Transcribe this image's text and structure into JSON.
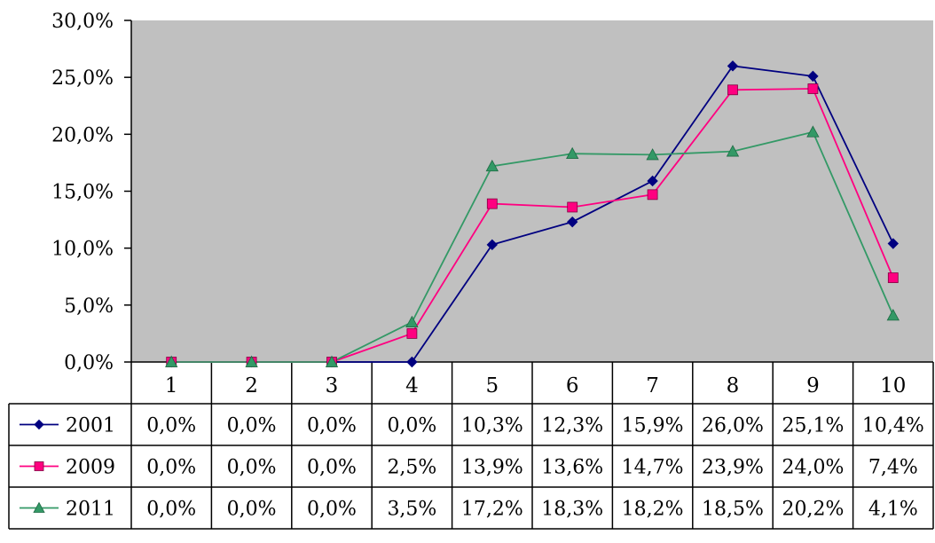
{
  "chart_data": {
    "type": "line",
    "categories": [
      "1",
      "2",
      "3",
      "4",
      "5",
      "6",
      "7",
      "8",
      "9",
      "10"
    ],
    "y_ticks": [
      "0,0%",
      "5,0%",
      "10,0%",
      "15,0%",
      "20,0%",
      "25,0%",
      "30,0%"
    ],
    "ylim": [
      0,
      30
    ],
    "grid": false,
    "plot_background": "#c0c0c0",
    "legend": "data table below the chart",
    "series": [
      {
        "name": "2001",
        "color": "#000080",
        "marker": "diamond",
        "values": [
          0.0,
          0.0,
          0.0,
          0.0,
          10.3,
          12.3,
          15.9,
          26.0,
          25.1,
          10.4
        ],
        "labels": [
          "0,0%",
          "0,0%",
          "0,0%",
          "0,0%",
          "10,3%",
          "12,3%",
          "15,9%",
          "26,0%",
          "25,1%",
          "10,4%"
        ]
      },
      {
        "name": "2009",
        "color": "#ff0080",
        "marker": "square",
        "values": [
          0.0,
          0.0,
          0.0,
          2.5,
          13.9,
          13.6,
          14.7,
          23.9,
          24.0,
          7.4
        ],
        "labels": [
          "0,0%",
          "0,0%",
          "0,0%",
          "2,5%",
          "13,9%",
          "13,6%",
          "14,7%",
          "23,9%",
          "24,0%",
          "7,4%"
        ]
      },
      {
        "name": "2011",
        "color": "#339966",
        "marker": "triangle",
        "values": [
          0.0,
          0.0,
          0.0,
          3.5,
          17.2,
          18.3,
          18.2,
          18.5,
          20.2,
          4.1
        ],
        "labels": [
          "0,0%",
          "0,0%",
          "0,0%",
          "3,5%",
          "17,2%",
          "18,3%",
          "18,2%",
          "18,5%",
          "20,2%",
          "4,1%"
        ]
      }
    ]
  }
}
